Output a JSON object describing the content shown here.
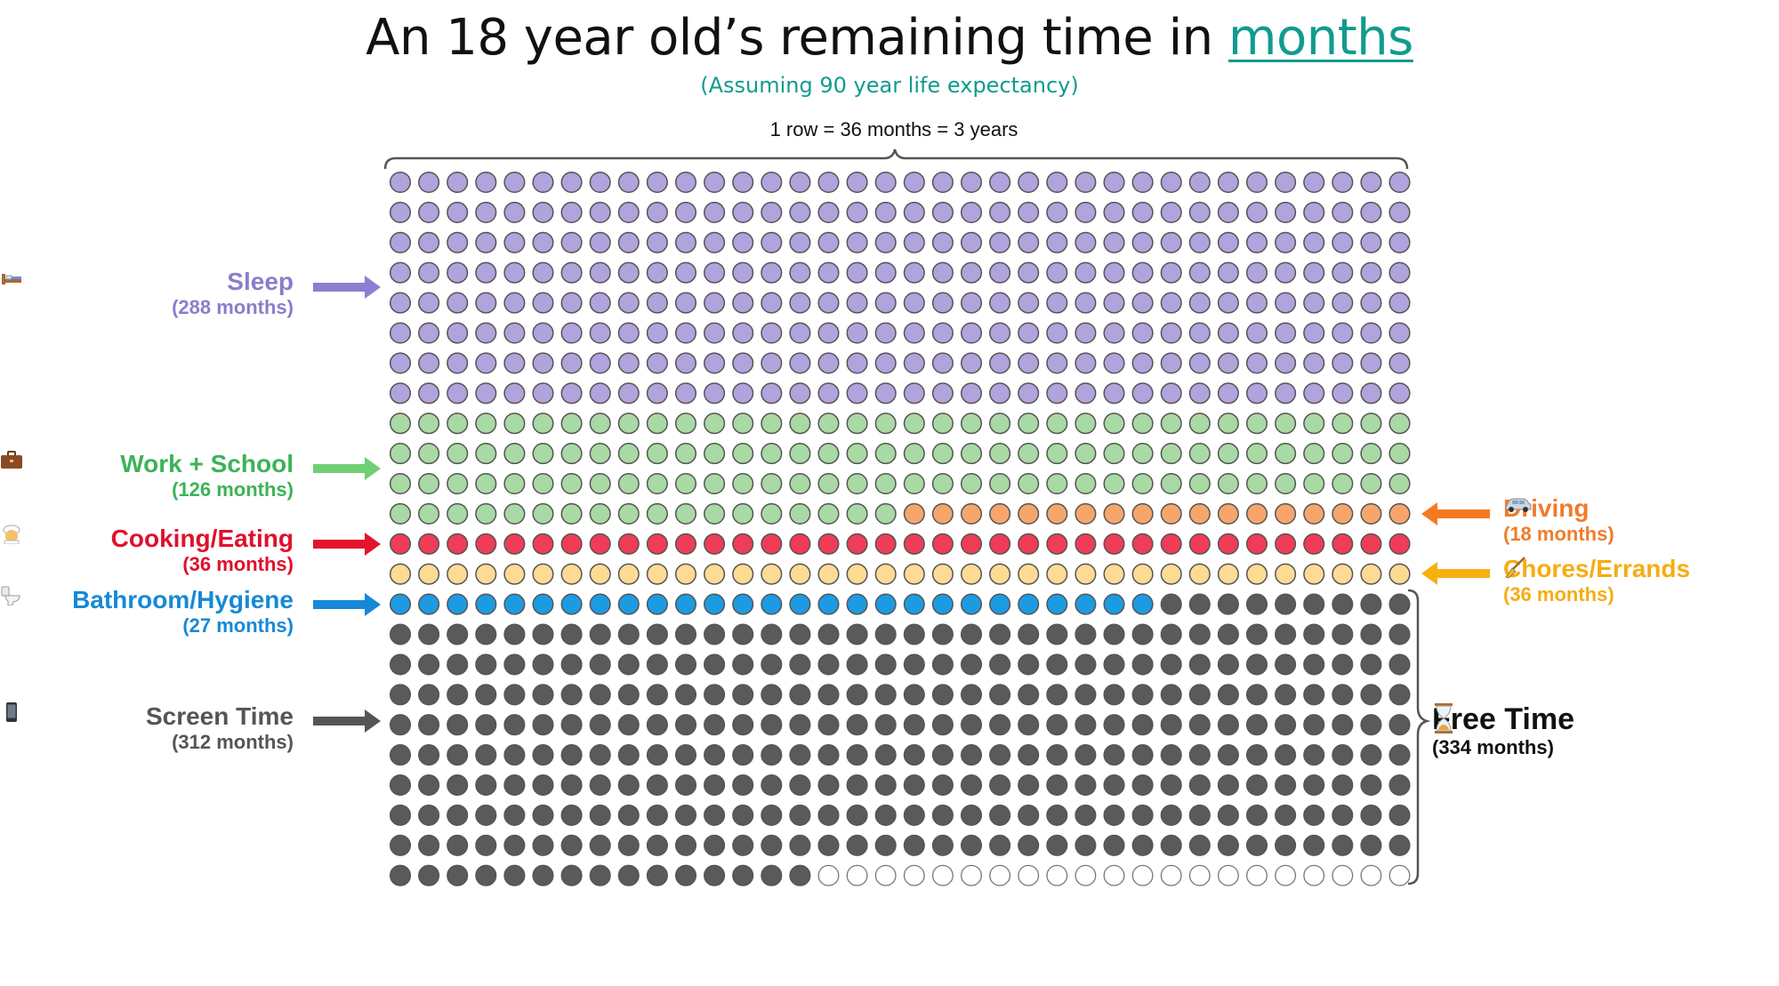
{
  "title": {
    "prefix": "An 18 year old’s remaining time in ",
    "highlight": "months"
  },
  "subtitle": "(Assuming 90 year life expectancy)",
  "row_label": "1 row = 36 months = 3 years",
  "colors": {
    "sleep": "#b1a3dc",
    "work": "#a9d9a4",
    "driving": "#f6a66a",
    "cooking": "#ef3c57",
    "chores": "#fddb95",
    "bathroom": "#1c9be3",
    "screen": "#5a5a5a",
    "free": "#ffffff",
    "stroke": "#555555",
    "sleep_text": "#8c7ccc",
    "work_text": "#3cb356",
    "driving_text": "#f07c2a",
    "cooking_text": "#e0102c",
    "chores_text": "#f5ad12",
    "bathroom_text": "#1689d6",
    "screen_text": "#555555",
    "free_text": "#111111",
    "sleep_arrow": "#8f7dd0",
    "work_arrow": "#6fcf73",
    "driving_arrow": "#f47a20",
    "cooking_arrow": "#e3132d",
    "chores_arrow": "#f7b10f",
    "bathroom_arrow": "#1788d8",
    "screen_arrow": "#555555"
  },
  "categories": {
    "sleep": {
      "name": "Sleep",
      "months_label": "(288 months)",
      "icon": "bed-icon"
    },
    "work": {
      "name": "Work + School",
      "months_label": "(126 months)",
      "icon": "briefcase-icon"
    },
    "driving": {
      "name": "Driving",
      "months_label": "(18 months)",
      "icon": "car-icon"
    },
    "cooking": {
      "name": "Cooking/Eating",
      "months_label": "(36 months)",
      "icon": "cook-icon"
    },
    "chores": {
      "name": "Chores/Errands",
      "months_label": "(36 months)",
      "icon": "broom-icon"
    },
    "bathroom": {
      "name": "Bathroom/Hygiene",
      "months_label": "(27 months)",
      "icon": "toilet-icon"
    },
    "screen": {
      "name": "Screen Time",
      "months_label": "(312 months)",
      "icon": "phone-icon"
    },
    "free": {
      "name": "Free Time",
      "months_label": "(334 months)",
      "icon": "hourglass-icon"
    }
  },
  "chart_data": {
    "type": "waffle",
    "title": "An 18 year old’s remaining time in months",
    "subtitle": "(Assuming 90 year life expectancy)",
    "columns": 36,
    "rows": 24,
    "unit": "1 row = 36 months = 3 years",
    "series": [
      {
        "name": "Sleep",
        "key": "sleep",
        "value": 288
      },
      {
        "name": "Work + School",
        "key": "work",
        "value": 126
      },
      {
        "name": "Driving",
        "key": "driving",
        "value": 18
      },
      {
        "name": "Cooking/Eating",
        "key": "cooking",
        "value": 36
      },
      {
        "name": "Chores/Errands",
        "key": "chores",
        "value": 36
      },
      {
        "name": "Bathroom/Hygiene",
        "key": "bathroom",
        "value": 27
      },
      {
        "name": "Screen Time",
        "key": "screen",
        "value": 312
      },
      {
        "name": "Free Time",
        "key": "free",
        "value": 21
      }
    ],
    "free_time_bracket_total": 334
  }
}
